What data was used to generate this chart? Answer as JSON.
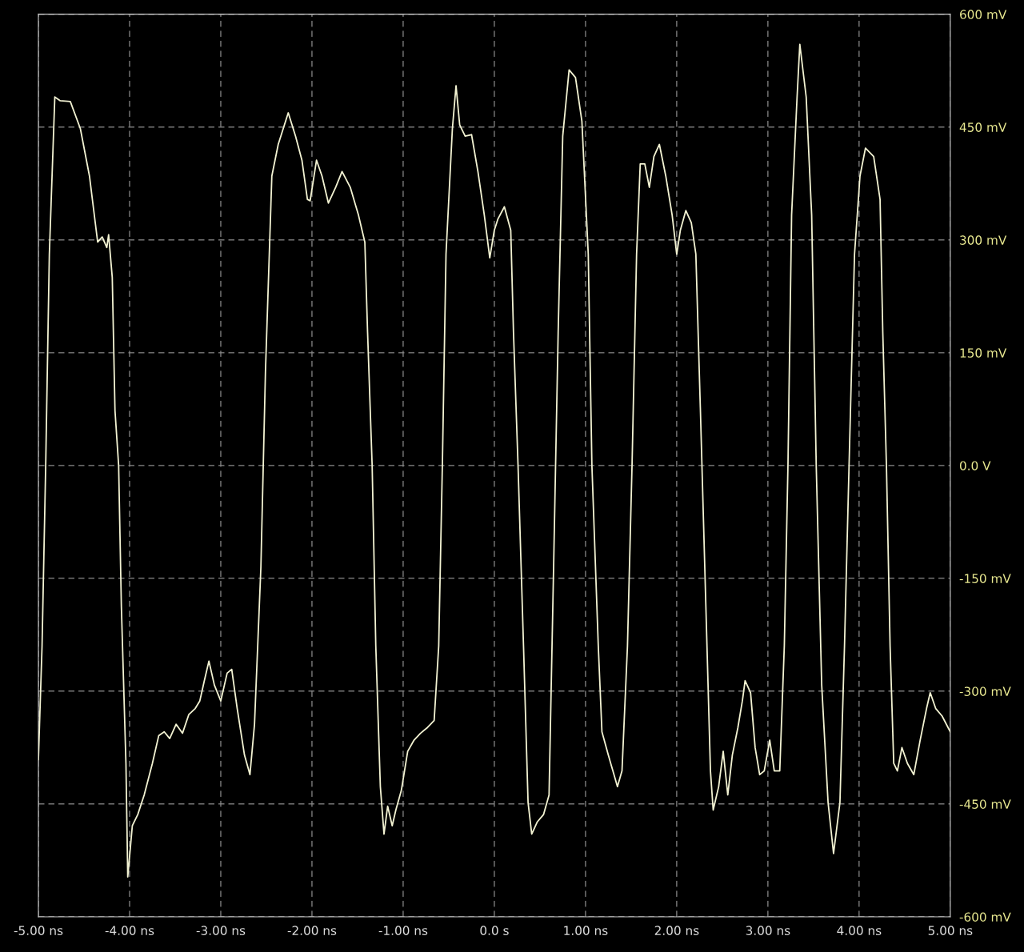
{
  "chart_data": {
    "type": "line",
    "x": [
      -5.0,
      -4.96,
      -4.92,
      -4.88,
      -4.82,
      -4.76,
      -4.65,
      -4.54,
      -4.44,
      -4.35,
      -4.3,
      -4.25,
      -4.23,
      -4.19,
      -4.16,
      -4.12,
      -4.09,
      -4.04,
      -4.02,
      -3.97,
      -3.91,
      -3.84,
      -3.75,
      -3.68,
      -3.62,
      -3.56,
      -3.49,
      -3.42,
      -3.35,
      -3.28,
      -3.23,
      -3.18,
      -3.13,
      -3.07,
      -3.0,
      -2.93,
      -2.88,
      -2.82,
      -2.74,
      -2.68,
      -2.63,
      -2.56,
      -2.51,
      -2.44,
      -2.37,
      -2.26,
      -2.18,
      -2.11,
      -2.05,
      -2.02,
      -1.95,
      -1.89,
      -1.82,
      -1.74,
      -1.67,
      -1.58,
      -1.49,
      -1.42,
      -1.39,
      -1.34,
      -1.3,
      -1.25,
      -1.21,
      -1.17,
      -1.12,
      -1.08,
      -1.02,
      -0.95,
      -0.88,
      -0.81,
      -0.74,
      -0.66,
      -0.61,
      -0.57,
      -0.53,
      -0.46,
      -0.42,
      -0.38,
      -0.32,
      -0.25,
      -0.18,
      -0.11,
      -0.05,
      0.0,
      0.04,
      0.11,
      0.18,
      0.21,
      0.26,
      0.32,
      0.37,
      0.41,
      0.47,
      0.54,
      0.6,
      0.65,
      0.7,
      0.75,
      0.82,
      0.89,
      0.96,
      1.03,
      1.07,
      1.14,
      1.18,
      1.25,
      1.3,
      1.35,
      1.4,
      1.46,
      1.51,
      1.56,
      1.6,
      1.65,
      1.7,
      1.75,
      1.81,
      1.88,
      1.95,
      2.0,
      2.04,
      2.1,
      2.16,
      2.21,
      2.26,
      2.32,
      2.37,
      2.4,
      2.46,
      2.51,
      2.56,
      2.61,
      2.67,
      2.72,
      2.75,
      2.81,
      2.86,
      2.91,
      2.96,
      3.02,
      3.07,
      3.13,
      3.18,
      3.22,
      3.26,
      3.32,
      3.35,
      3.42,
      3.48,
      3.53,
      3.59,
      3.66,
      3.72,
      3.79,
      3.84,
      3.89,
      3.95,
      4.01,
      4.07,
      4.16,
      4.23,
      4.26,
      4.3,
      4.34,
      4.38,
      4.42,
      4.47,
      4.53,
      4.6,
      4.67,
      4.74,
      4.78,
      4.84,
      4.91,
      5.0
    ],
    "series": [
      {
        "color": "#f2f2d2",
        "values": [
          -391,
          -240,
          0,
          281,
          490,
          485,
          484,
          448,
          385,
          297,
          304,
          290,
          307,
          250,
          73,
          0,
          -188,
          -396,
          -547,
          -479,
          -464,
          -438,
          -396,
          -359,
          -354,
          -363,
          -344,
          -356,
          -331,
          -323,
          -313,
          -286,
          -260,
          -292,
          -313,
          -276,
          -271,
          -323,
          -385,
          -411,
          -344,
          -135,
          125,
          385,
          427,
          469,
          438,
          406,
          354,
          352,
          406,
          385,
          349,
          370,
          391,
          370,
          333,
          297,
          177,
          0,
          -240,
          -427,
          -490,
          -453,
          -479,
          -458,
          -432,
          -380,
          -365,
          -356,
          -349,
          -339,
          -240,
          0,
          281,
          448,
          505,
          453,
          438,
          440,
          391,
          333,
          276,
          313,
          328,
          344,
          313,
          177,
          0,
          -240,
          -448,
          -490,
          -474,
          -464,
          -438,
          -135,
          177,
          438,
          526,
          516,
          458,
          281,
          0,
          -240,
          -354,
          -385,
          -406,
          -427,
          -406,
          -240,
          0,
          281,
          401,
          401,
          370,
          411,
          427,
          385,
          333,
          281,
          313,
          339,
          323,
          281,
          73,
          -188,
          -406,
          -458,
          -427,
          -380,
          -438,
          -385,
          -349,
          -313,
          -286,
          -302,
          -375,
          -411,
          -406,
          -365,
          -406,
          -406,
          -240,
          0,
          333,
          490,
          560,
          490,
          333,
          0,
          -292,
          -448,
          -516,
          -448,
          -240,
          0,
          281,
          385,
          422,
          411,
          354,
          177,
          0,
          -240,
          -396,
          -406,
          -375,
          -396,
          -411,
          -365,
          -323,
          -302,
          -323,
          -333,
          -354
        ]
      }
    ],
    "xlim": [
      -5,
      5
    ],
    "ylim": [
      -600,
      600
    ],
    "xticks": [
      {
        "value": -5,
        "label": "-5.00 ns"
      },
      {
        "value": -4,
        "label": "-4.00 ns"
      },
      {
        "value": -3,
        "label": "-3.00 ns"
      },
      {
        "value": -2,
        "label": "-2.00 ns"
      },
      {
        "value": -1,
        "label": "-1.00 ns"
      },
      {
        "value": 0,
        "label": "0.0 s"
      },
      {
        "value": 1,
        "label": "1.00 ns"
      },
      {
        "value": 2,
        "label": "2.00 ns"
      },
      {
        "value": 3,
        "label": "3.00 ns"
      },
      {
        "value": 4,
        "label": "4.00 ns"
      },
      {
        "value": 5,
        "label": "5.00 ns"
      }
    ],
    "yticks": [
      {
        "value": -600,
        "label": "-600 mV"
      },
      {
        "value": -450,
        "label": "-450 mV"
      },
      {
        "value": -300,
        "label": "-300 mV"
      },
      {
        "value": -150,
        "label": "-150 mV"
      },
      {
        "value": 0,
        "label": "0.0 V"
      },
      {
        "value": 150,
        "label": "150 mV"
      },
      {
        "value": 300,
        "label": "300 mV"
      },
      {
        "value": 450,
        "label": "450 mV"
      },
      {
        "value": 600,
        "label": "600 mV"
      }
    ],
    "grid": true,
    "line_style": "solid",
    "marker": "none"
  }
}
